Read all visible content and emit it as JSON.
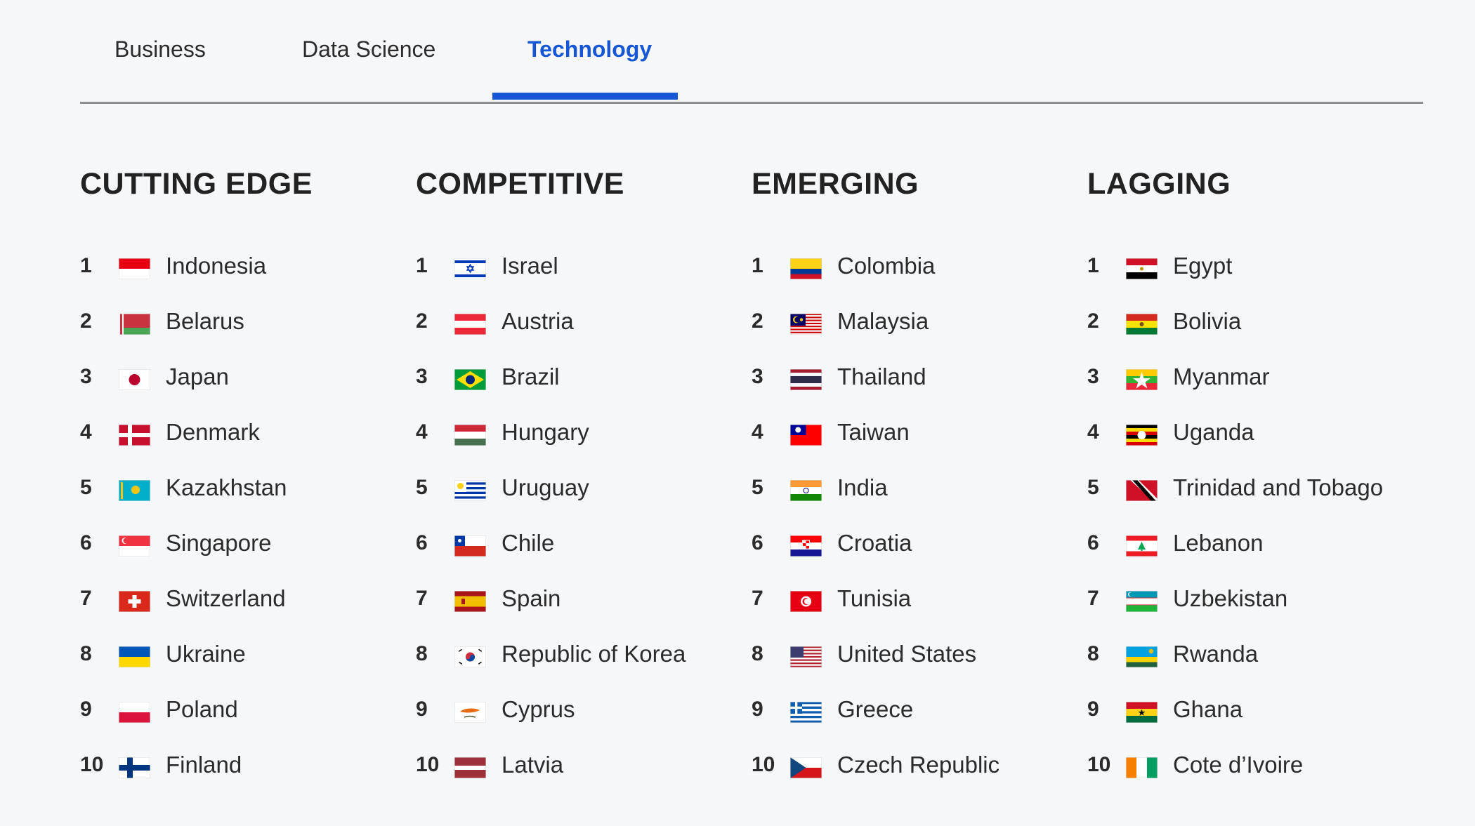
{
  "tabs": [
    {
      "label": "Business",
      "active": false
    },
    {
      "label": "Data Science",
      "active": false
    },
    {
      "label": "Technology",
      "active": true
    }
  ],
  "accent_color": "#1557d4",
  "columns": [
    {
      "title": "CUTTING EDGE",
      "items": [
        {
          "rank": "1",
          "country": "Indonesia",
          "flag": "id"
        },
        {
          "rank": "2",
          "country": "Belarus",
          "flag": "by"
        },
        {
          "rank": "3",
          "country": "Japan",
          "flag": "jp"
        },
        {
          "rank": "4",
          "country": "Denmark",
          "flag": "dk"
        },
        {
          "rank": "5",
          "country": "Kazakhstan",
          "flag": "kz"
        },
        {
          "rank": "6",
          "country": "Singapore",
          "flag": "sg"
        },
        {
          "rank": "7",
          "country": "Switzerland",
          "flag": "ch"
        },
        {
          "rank": "8",
          "country": "Ukraine",
          "flag": "ua"
        },
        {
          "rank": "9",
          "country": "Poland",
          "flag": "pl"
        },
        {
          "rank": "10",
          "country": "Finland",
          "flag": "fi"
        }
      ]
    },
    {
      "title": "COMPETITIVE",
      "items": [
        {
          "rank": "1",
          "country": "Israel",
          "flag": "il"
        },
        {
          "rank": "2",
          "country": "Austria",
          "flag": "at"
        },
        {
          "rank": "3",
          "country": "Brazil",
          "flag": "br"
        },
        {
          "rank": "4",
          "country": "Hungary",
          "flag": "hu"
        },
        {
          "rank": "5",
          "country": "Uruguay",
          "flag": "uy"
        },
        {
          "rank": "6",
          "country": "Chile",
          "flag": "cl"
        },
        {
          "rank": "7",
          "country": "Spain",
          "flag": "es"
        },
        {
          "rank": "8",
          "country": "Republic of Korea",
          "flag": "kr"
        },
        {
          "rank": "9",
          "country": "Cyprus",
          "flag": "cy"
        },
        {
          "rank": "10",
          "country": "Latvia",
          "flag": "lv"
        }
      ]
    },
    {
      "title": "EMERGING",
      "items": [
        {
          "rank": "1",
          "country": "Colombia",
          "flag": "co"
        },
        {
          "rank": "2",
          "country": "Malaysia",
          "flag": "my"
        },
        {
          "rank": "3",
          "country": "Thailand",
          "flag": "th"
        },
        {
          "rank": "4",
          "country": "Taiwan",
          "flag": "tw"
        },
        {
          "rank": "5",
          "country": "India",
          "flag": "in"
        },
        {
          "rank": "6",
          "country": "Croatia",
          "flag": "hr"
        },
        {
          "rank": "7",
          "country": "Tunisia",
          "flag": "tn"
        },
        {
          "rank": "8",
          "country": "United States",
          "flag": "us"
        },
        {
          "rank": "9",
          "country": "Greece",
          "flag": "gr"
        },
        {
          "rank": "10",
          "country": "Czech Republic",
          "flag": "cz"
        }
      ]
    },
    {
      "title": "LAGGING",
      "items": [
        {
          "rank": "1",
          "country": "Egypt",
          "flag": "eg"
        },
        {
          "rank": "2",
          "country": "Bolivia",
          "flag": "bo"
        },
        {
          "rank": "3",
          "country": "Myanmar",
          "flag": "mm"
        },
        {
          "rank": "4",
          "country": "Uganda",
          "flag": "ug"
        },
        {
          "rank": "5",
          "country": "Trinidad and Tobago",
          "flag": "tt"
        },
        {
          "rank": "6",
          "country": "Lebanon",
          "flag": "lb"
        },
        {
          "rank": "7",
          "country": "Uzbekistan",
          "flag": "uz"
        },
        {
          "rank": "8",
          "country": "Rwanda",
          "flag": "rw"
        },
        {
          "rank": "9",
          "country": "Ghana",
          "flag": "gh"
        },
        {
          "rank": "10",
          "country": "Cote d’Ivoire",
          "flag": "ci"
        }
      ]
    }
  ]
}
